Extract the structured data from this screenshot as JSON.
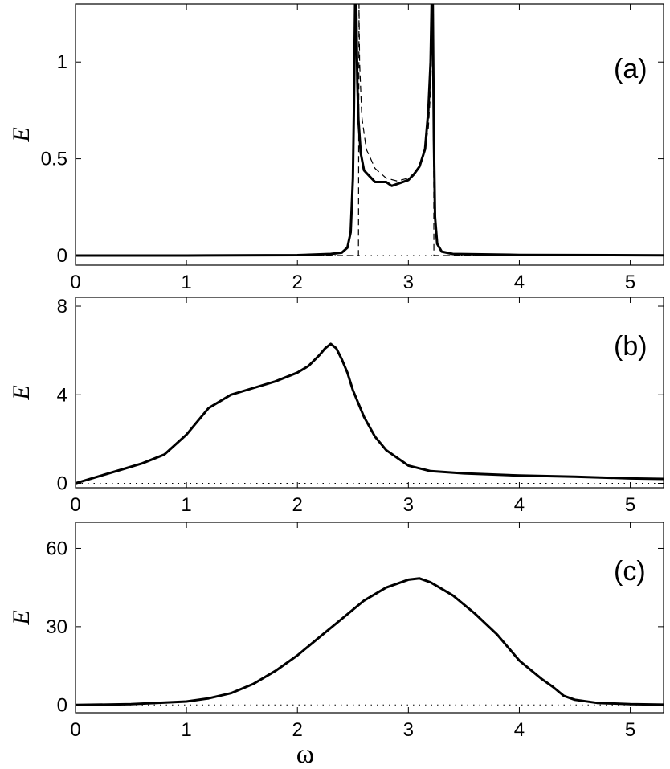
{
  "chart_data": [
    {
      "type": "line",
      "panel_label": "(a)",
      "ylabel": "E",
      "xlim": [
        0,
        5.3
      ],
      "ylim": [
        -0.05,
        1.3
      ],
      "xticks": [
        0,
        1,
        2,
        3,
        4,
        5
      ],
      "xtick_labels": [
        "0",
        "1",
        "2",
        "3",
        "4",
        "5"
      ],
      "yticks": [
        0,
        0.5,
        1
      ],
      "ytick_labels": [
        "0",
        "0.5",
        "1"
      ],
      "grid": false,
      "series": [
        {
          "style": "solid",
          "x": [
            0,
            1.0,
            2.0,
            2.3,
            2.4,
            2.45,
            2.48,
            2.5,
            2.51,
            2.52,
            2.53,
            2.54,
            2.55,
            2.57,
            2.6,
            2.65,
            2.7,
            2.8,
            2.85,
            2.9,
            3.0,
            3.05,
            3.1,
            3.15,
            3.18,
            3.2,
            3.21,
            3.22,
            3.23,
            3.24,
            3.26,
            3.3,
            3.4,
            4.0,
            5.3
          ],
          "y": [
            0,
            0,
            0.002,
            0.008,
            0.015,
            0.04,
            0.12,
            0.4,
            0.8,
            1.3,
            1.3,
            0.9,
            0.7,
            0.53,
            0.44,
            0.41,
            0.38,
            0.38,
            0.36,
            0.37,
            0.39,
            0.42,
            0.46,
            0.55,
            0.75,
            1.0,
            1.3,
            1.3,
            0.6,
            0.2,
            0.06,
            0.02,
            0.008,
            0.003,
            0.001
          ]
        },
        {
          "style": "dashed",
          "x": [
            0,
            2.55,
            2.555,
            2.56,
            2.58,
            2.62,
            2.7,
            2.8,
            2.9,
            3.0,
            3.08,
            3.14,
            3.18,
            3.2,
            3.22,
            3.225,
            3.23,
            5.3
          ],
          "y": [
            0,
            0,
            1.3,
            1.0,
            0.72,
            0.55,
            0.45,
            0.4,
            0.385,
            0.4,
            0.44,
            0.52,
            0.66,
            0.85,
            1.3,
            1.3,
            0,
            0
          ]
        },
        {
          "style": "dotted",
          "x": [
            0,
            5.3
          ],
          "y": [
            0,
            0
          ]
        }
      ]
    },
    {
      "type": "line",
      "panel_label": "(b)",
      "ylabel": "E",
      "xlim": [
        0,
        5.3
      ],
      "ylim": [
        -0.2,
        8.4
      ],
      "xticks": [
        0,
        1,
        2,
        3,
        4,
        5
      ],
      "xtick_labels": [
        "0",
        "1",
        "2",
        "3",
        "4",
        "5"
      ],
      "yticks": [
        0,
        4,
        8
      ],
      "ytick_labels": [
        "0",
        "4",
        "8"
      ],
      "grid": false,
      "series": [
        {
          "style": "solid",
          "x": [
            0,
            0.2,
            0.4,
            0.6,
            0.8,
            1.0,
            1.1,
            1.2,
            1.4,
            1.6,
            1.8,
            2.0,
            2.1,
            2.2,
            2.25,
            2.3,
            2.35,
            2.4,
            2.45,
            2.5,
            2.6,
            2.7,
            2.8,
            3.0,
            3.2,
            3.5,
            4.0,
            4.5,
            5.0,
            5.3
          ],
          "y": [
            0,
            0.3,
            0.6,
            0.9,
            1.3,
            2.2,
            2.8,
            3.4,
            4.0,
            4.3,
            4.6,
            5.0,
            5.3,
            5.8,
            6.1,
            6.3,
            6.1,
            5.6,
            5.0,
            4.2,
            3.0,
            2.1,
            1.5,
            0.8,
            0.55,
            0.45,
            0.35,
            0.3,
            0.22,
            0.2
          ]
        },
        {
          "style": "dotted",
          "x": [
            0,
            5.3
          ],
          "y": [
            0,
            0
          ]
        }
      ]
    },
    {
      "type": "line",
      "panel_label": "(c)",
      "ylabel": "E",
      "xlim": [
        0,
        5.3
      ],
      "ylim": [
        -3,
        70
      ],
      "xticks": [
        0,
        1,
        2,
        3,
        4,
        5
      ],
      "xtick_labels": [
        "0",
        "1",
        "2",
        "3",
        "4",
        "5"
      ],
      "yticks": [
        0,
        30,
        60
      ],
      "ytick_labels": [
        "0",
        "30",
        "60"
      ],
      "xlabel": "ω",
      "grid": false,
      "series": [
        {
          "style": "solid",
          "x": [
            0,
            0.5,
            1.0,
            1.2,
            1.4,
            1.6,
            1.8,
            2.0,
            2.2,
            2.4,
            2.6,
            2.8,
            3.0,
            3.1,
            3.2,
            3.4,
            3.6,
            3.8,
            3.9,
            4.0,
            4.2,
            4.3,
            4.4,
            4.5,
            4.7,
            5.0,
            5.3
          ],
          "y": [
            0,
            0.3,
            1.3,
            2.5,
            4.5,
            8.0,
            13.0,
            19.0,
            26.0,
            33.0,
            40.0,
            45.0,
            48.0,
            48.5,
            47.0,
            42.0,
            35.0,
            27.0,
            22.0,
            17.0,
            10.0,
            7.0,
            3.5,
            2.0,
            0.8,
            0.3,
            0.1
          ]
        },
        {
          "style": "dotted",
          "x": [
            0,
            5.3
          ],
          "y": [
            0,
            0
          ]
        }
      ]
    }
  ]
}
